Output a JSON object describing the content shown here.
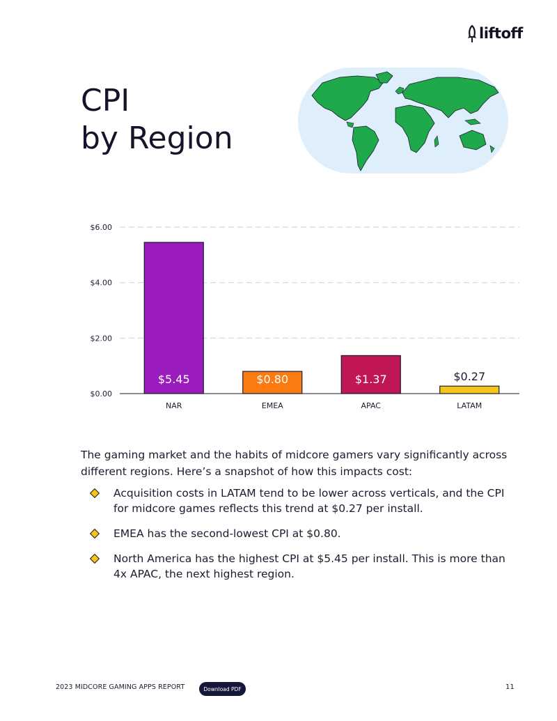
{
  "brand": {
    "logo_text": "liftoff"
  },
  "page": {
    "title_line1": "CPI",
    "title_line2": "by Region"
  },
  "chart_data": {
    "type": "bar",
    "categories": [
      "NAR",
      "EMEA",
      "APAC",
      "LATAM"
    ],
    "values": [
      5.45,
      0.8,
      1.37,
      0.27
    ],
    "data_labels": [
      "$5.45",
      "$0.80",
      "$1.37",
      "$0.27"
    ],
    "colors": [
      "#9b1cbd",
      "#fb7a12",
      "#c11656",
      "#f5c518"
    ],
    "title": "",
    "xlabel": "",
    "ylabel": "",
    "ylim": [
      0,
      6
    ],
    "yticks": [
      0,
      2,
      4,
      6
    ],
    "ytick_labels": [
      "$0.00",
      "$2.00",
      "$4.00",
      "$6.00"
    ],
    "grid": true,
    "legend": "none"
  },
  "body": {
    "intro": "The gaming market and the habits of midcore gamers vary significantly across different regions. Here’s a snapshot of how this impacts cost:",
    "bullets": [
      "Acquisition costs in LATAM tend to be lower across verticals, and the CPI for midcore games reflects this trend at $0.27 per install.",
      "EMEA has the second-lowest CPI at $0.80.",
      "North America has the highest CPI at $5.45 per install. This is more than 4x APAC, the next highest region."
    ]
  },
  "footer": {
    "report_title": "2023 MIDCORE GAMING APPS REPORT",
    "download_label": "Download PDF",
    "page_number": "11"
  },
  "colors": {
    "map_background": "#deeefb",
    "continents": "#1fa94a",
    "bullet_diamond": "#f5c518",
    "button_bg": "#16163a"
  }
}
